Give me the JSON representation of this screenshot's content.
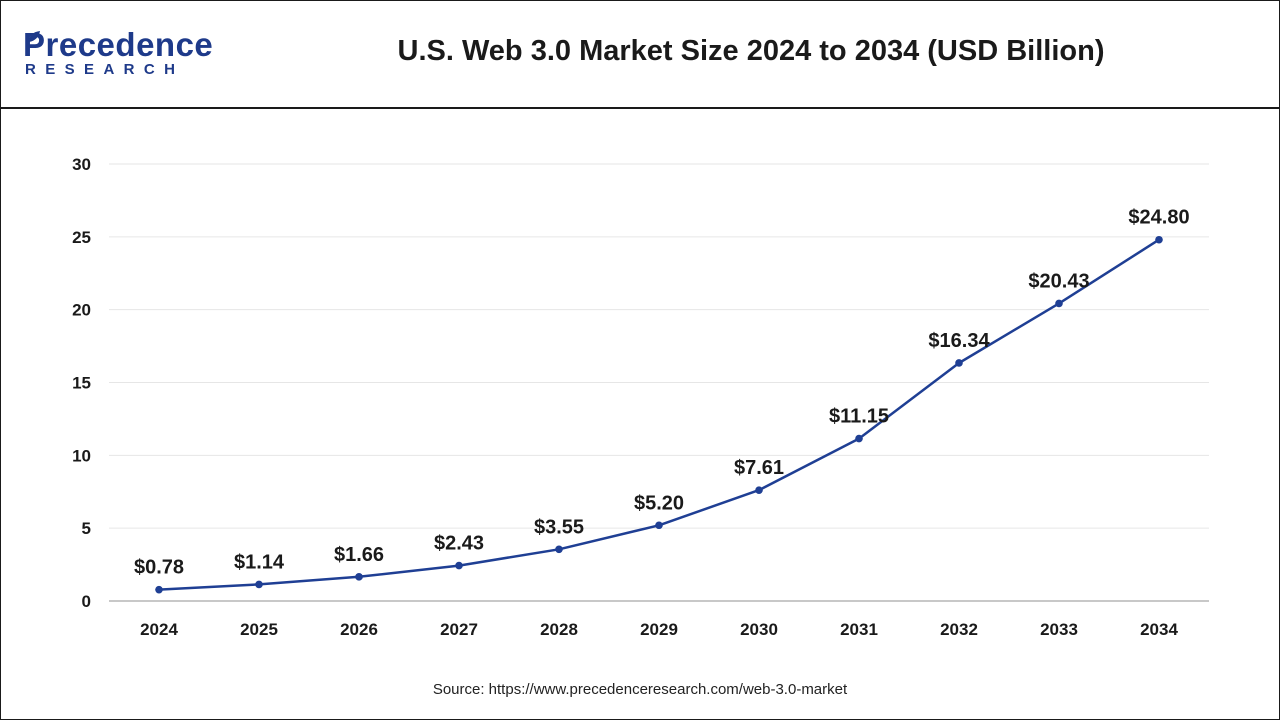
{
  "brand": {
    "name": "Precedence",
    "sub": "RESEARCH"
  },
  "header": {
    "title": "U.S. Web 3.0 Market Size 2024 to 2034 (USD Billion)"
  },
  "footer": {
    "source": "Source: https://www.precedenceresearch.com/web-3.0-market"
  },
  "colors": {
    "line": "#1f3f94",
    "brand": "#1e3a8a",
    "grid": "#e6e6e6"
  },
  "chart_data": {
    "type": "line",
    "title": "U.S. Web 3.0 Market Size 2024 to 2034 (USD Billion)",
    "xlabel": "",
    "ylabel": "",
    "categories": [
      "2024",
      "2025",
      "2026",
      "2027",
      "2028",
      "2029",
      "2030",
      "2031",
      "2032",
      "2033",
      "2034"
    ],
    "values": [
      0.78,
      1.14,
      1.66,
      2.43,
      3.55,
      5.2,
      7.61,
      11.15,
      16.34,
      20.43,
      24.8
    ],
    "data_labels": [
      "$0.78",
      "$1.14",
      "$1.66",
      "$2.43",
      "$3.55",
      "$5.20",
      "$7.61",
      "$11.15",
      "$16.34",
      "$20.43",
      "$24.80"
    ],
    "ylim": [
      0,
      30
    ],
    "yticks": [
      0,
      5,
      10,
      15,
      20,
      25,
      30
    ],
    "grid": true,
    "legend": "none"
  }
}
